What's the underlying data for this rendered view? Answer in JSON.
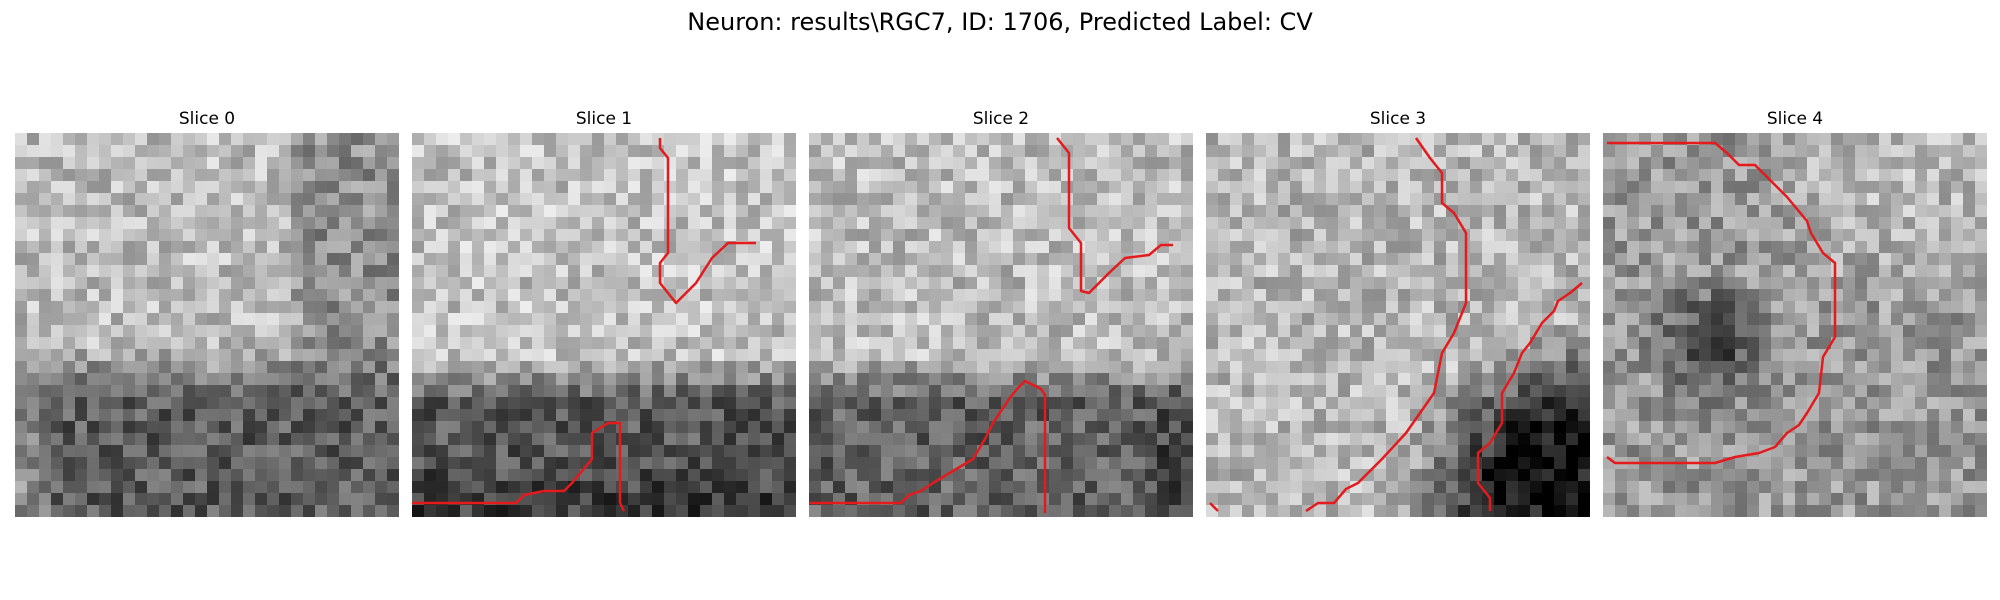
{
  "figure": {
    "title": "Neuron: results\\RGC7, ID: 1706, Predicted Label: CV"
  },
  "trace_color": "#e41a1c",
  "panels": [
    {
      "title": "Slice 0"
    },
    {
      "title": "Slice 1"
    },
    {
      "title": "Slice 2"
    },
    {
      "title": "Slice 3"
    },
    {
      "title": "Slice 4"
    }
  ]
}
